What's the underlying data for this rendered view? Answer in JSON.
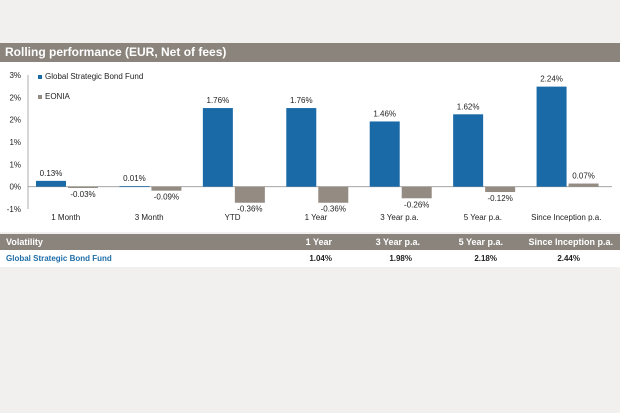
{
  "header": {
    "title": "Rolling performance (EUR, Net of fees)"
  },
  "chart_data": {
    "type": "bar",
    "categories": [
      "1 Month",
      "3 Month",
      "YTD",
      "1 Year",
      "3 Year p.a.",
      "5 Year p.a.",
      "Since Inception p.a."
    ],
    "series": [
      {
        "name": "Global Strategic Bond Fund",
        "color": "#1a6aa8",
        "values": [
          0.13,
          0.01,
          1.76,
          1.76,
          1.46,
          1.62,
          2.24
        ],
        "labels": [
          "0.13%",
          "0.01%",
          "1.76%",
          "1.76%",
          "1.46%",
          "1.62%",
          "2.24%"
        ]
      },
      {
        "name": "EONIA",
        "color": "#948b83",
        "values": [
          -0.03,
          -0.09,
          -0.36,
          -0.36,
          -0.26,
          -0.12,
          0.07
        ],
        "labels": [
          "-0.03%",
          "-0.09%",
          "-0.36%",
          "-0.36%",
          "-0.26%",
          "-0.12%",
          "0.07%"
        ]
      }
    ],
    "ylim": [
      -0.5,
      2.5
    ],
    "y_ticks": [
      "-1%",
      "0%",
      "1%",
      "1%",
      "2%",
      "2%",
      "3%"
    ],
    "legend": "top-left",
    "grid": false
  },
  "volatility": {
    "header": [
      "Volatility",
      "1 Year",
      "3 Year p.a.",
      "5 Year p.a.",
      "Since Inception p.a."
    ],
    "row": [
      "Global Strategic Bond Fund",
      "1.04%",
      "1.98%",
      "2.18%",
      "2.44%"
    ]
  }
}
